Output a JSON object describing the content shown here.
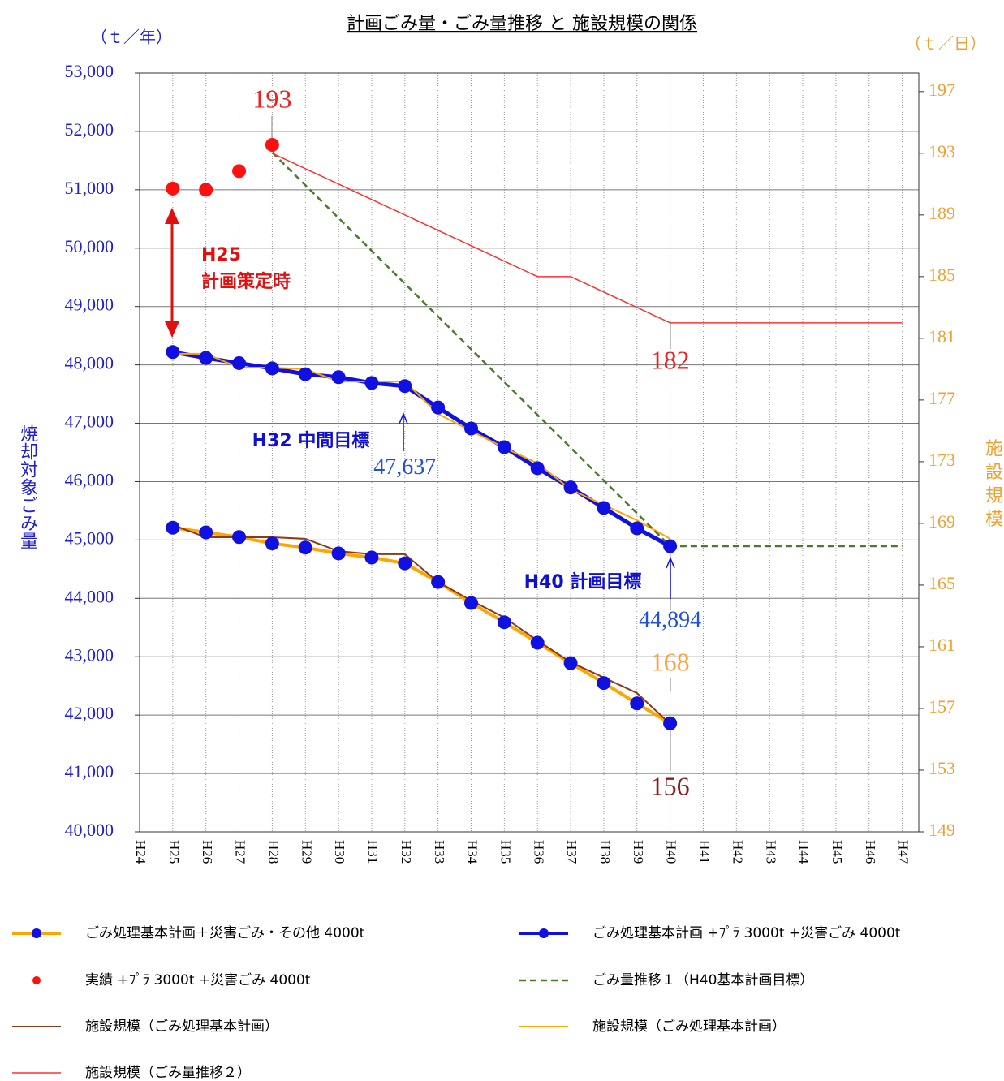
{
  "chart_data": {
    "type": "line",
    "title": "計画ごみ量・ごみ量推移 と 施設規模の関係",
    "y_unit": "（ｔ／年）",
    "y2_unit": "（ｔ／日）",
    "y_label": "焼却対象ごみ量",
    "y2_label": "施 設 規 模",
    "categories": [
      "H24",
      "H25",
      "H26",
      "H27",
      "H28",
      "H29",
      "H30",
      "H31",
      "H32",
      "H33",
      "H34",
      "H35",
      "H36",
      "H37",
      "H38",
      "H39",
      "H40",
      "H41",
      "H42",
      "H43",
      "H44",
      "H45",
      "H46",
      "H47"
    ],
    "ylim": [
      40000,
      53000
    ],
    "yticks": [
      {
        "value": 40000,
        "label": "40,000"
      },
      {
        "value": 41000,
        "label": "41,000"
      },
      {
        "value": 42000,
        "label": "42,000"
      },
      {
        "value": 43000,
        "label": "43,000"
      },
      {
        "value": 44000,
        "label": "44,000"
      },
      {
        "value": 45000,
        "label": "45,000"
      },
      {
        "value": 46000,
        "label": "46,000"
      },
      {
        "value": 47000,
        "label": "47,000"
      },
      {
        "value": 48000,
        "label": "48,000"
      },
      {
        "value": 49000,
        "label": "49,000"
      },
      {
        "value": 50000,
        "label": "50,000"
      },
      {
        "value": 51000,
        "label": "51,000"
      },
      {
        "value": 52000,
        "label": "52,000"
      },
      {
        "value": 53000,
        "label": "53,000"
      }
    ],
    "y2lim": [
      149,
      198.2
    ],
    "y2ticks": [
      149,
      153,
      157,
      161,
      165,
      169,
      173,
      177,
      181,
      185,
      189,
      193,
      197
    ],
    "grid": true,
    "series": [
      {
        "name": "ごみ処理基本計画＋災害ごみ・その他 4000t",
        "color": "#ffa500",
        "marker_color": "#1010e0",
        "line_width": 4,
        "values": [
          null,
          45210,
          45130,
          45050,
          44940,
          44870,
          44770,
          44700,
          44600,
          44280,
          43920,
          43590,
          43240,
          42890,
          42550,
          42200,
          41860,
          null,
          null,
          null,
          null,
          null,
          null,
          null
        ]
      },
      {
        "name": "ごみ処理基本計画 +ﾌﾟﾗ 3000t +災害ごみ 4000t",
        "color": "#1010e0",
        "marker_color": "#1010e0",
        "line_width": 5,
        "values": [
          null,
          48220,
          48120,
          48030,
          47940,
          47840,
          47790,
          47690,
          47637,
          47270,
          46910,
          46590,
          46230,
          45900,
          45550,
          45200,
          44894,
          null,
          null,
          null,
          null,
          null,
          null,
          null
        ],
        "value_labels": [
          null,
          null,
          null,
          null,
          null,
          null,
          null,
          null,
          "47,637",
          null,
          null,
          null,
          null,
          null,
          null,
          null,
          "44,894",
          null,
          null,
          null,
          null,
          null,
          null,
          null
        ]
      },
      {
        "name": "実績 +ﾌﾟﾗ 3000t +災害ごみ 4000t",
        "color": "#ff1010",
        "marker_color": "#ff1010",
        "line_width": 0,
        "values": [
          null,
          51020,
          51000,
          51320,
          51770,
          null,
          null,
          null,
          null,
          null,
          null,
          null,
          null,
          null,
          null,
          null,
          null,
          null,
          null,
          null,
          null,
          null,
          null,
          null
        ]
      },
      {
        "name": "ごみ量推移１（H40基本計画目標）",
        "color": "#4a7a2a",
        "line_width": 2.5,
        "dash": true,
        "values": [
          null,
          null,
          null,
          null,
          51640,
          51078,
          50516,
          49954,
          49392,
          48830,
          48268,
          47706,
          47144,
          46582,
          46020,
          45458,
          44894,
          44894,
          44894,
          44894,
          44894,
          44894,
          44894,
          44894
        ]
      },
      {
        "name": "施設規模（ごみ処理基本計画）",
        "color": "#8b3a1a",
        "line_width": 2,
        "axis": "y2",
        "values": [
          null,
          168.9,
          168.1,
          168.1,
          168.1,
          168.0,
          167.2,
          167.0,
          167.0,
          165.2,
          164.0,
          162.9,
          161.4,
          160.0,
          159.0,
          158.0,
          156,
          null,
          null,
          null,
          null,
          null,
          null,
          null
        ],
        "value_labels": [
          null,
          null,
          null,
          null,
          null,
          null,
          null,
          null,
          null,
          null,
          null,
          null,
          null,
          null,
          null,
          null,
          "156",
          null,
          null,
          null,
          null,
          null,
          null,
          null
        ]
      },
      {
        "name": "施設規模（ごみ処理基本計画）",
        "color": "#ffa500",
        "line_width": 2,
        "axis": "y2",
        "values": [
          null,
          180.0,
          180.0,
          179.1,
          179.1,
          179.0,
          178.2,
          178.2,
          178.2,
          176.1,
          175.0,
          173.9,
          172.9,
          171.2,
          170.2,
          169.2,
          168,
          null,
          null,
          null,
          null,
          null,
          null,
          null
        ],
        "value_labels": [
          null,
          null,
          null,
          null,
          null,
          null,
          null,
          null,
          null,
          null,
          null,
          null,
          null,
          null,
          null,
          null,
          "168",
          null,
          null,
          null,
          null,
          null,
          null,
          null
        ]
      },
      {
        "name": "施設規模（ごみ量推移２）",
        "color": "#ff3030",
        "line_width": 1.5,
        "axis": "y2",
        "values": [
          null,
          null,
          null,
          null,
          193,
          192,
          191,
          190,
          189,
          188,
          187,
          186,
          185,
          185,
          184,
          183,
          182,
          182,
          182,
          182,
          182,
          182,
          182,
          182
        ],
        "value_labels": [
          null,
          null,
          null,
          null,
          "193",
          null,
          null,
          null,
          null,
          null,
          null,
          null,
          null,
          null,
          null,
          null,
          "182",
          null,
          null,
          null,
          null,
          null,
          null,
          null
        ]
      }
    ],
    "annotations": [
      {
        "text": "H25"
      },
      {
        "text": "計画策定時"
      },
      {
        "text": "H32 中間目標"
      },
      {
        "text": "H40 計画目標"
      }
    ]
  }
}
